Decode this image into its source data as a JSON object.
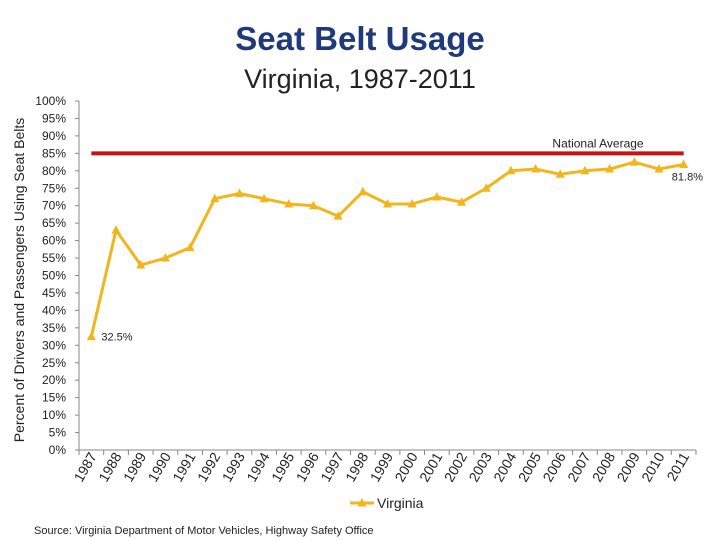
{
  "chart_data": {
    "type": "line",
    "title": "Seat Belt Usage",
    "subtitle": "Virginia, 1987-2011",
    "ylabel": "Percent of Drivers and Passengers Using Seat Belts",
    "xlabel": "",
    "ylim": [
      0,
      100
    ],
    "y_ticks": [
      "0%",
      "5%",
      "10%",
      "15%",
      "20%",
      "25%",
      "30%",
      "35%",
      "40%",
      "45%",
      "50%",
      "55%",
      "60%",
      "65%",
      "70%",
      "75%",
      "80%",
      "85%",
      "90%",
      "95%",
      "100%"
    ],
    "categories": [
      "1987",
      "1988",
      "1989",
      "1990",
      "1991",
      "1992",
      "1993",
      "1994",
      "1995",
      "1996",
      "1997",
      "1998",
      "1999",
      "2000",
      "2001",
      "2002",
      "2003",
      "2004",
      "2005",
      "2006",
      "2007",
      "2008",
      "2009",
      "2010",
      "2011"
    ],
    "series": [
      {
        "name": "Virginia",
        "color": "#f2b51c",
        "values": [
          32.5,
          63,
          53,
          55,
          58,
          72,
          73.5,
          72,
          70.5,
          70,
          67,
          74,
          70.5,
          70.5,
          72.5,
          71,
          75,
          80,
          80.5,
          79,
          80,
          80.5,
          82.5,
          80.5,
          81.8
        ]
      }
    ],
    "reference_line": {
      "label": "National Average",
      "value": 85,
      "color": "#cc1111"
    },
    "annotations": [
      {
        "category": "1987",
        "text": "32.5%"
      },
      {
        "category": "2011",
        "text": "81.8%"
      }
    ],
    "legend": {
      "position": "bottom",
      "label": "Virginia"
    }
  },
  "source": "Source: Virginia Department of Motor Vehicles, Highway Safety Office"
}
